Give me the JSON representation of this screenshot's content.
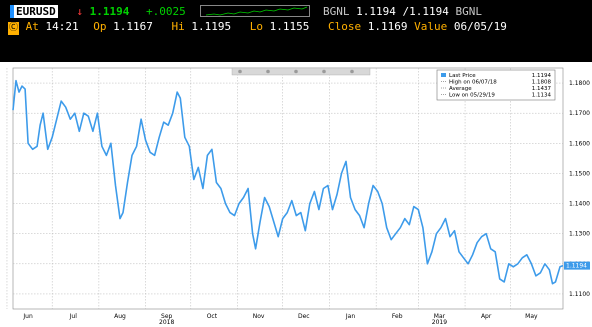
{
  "header": {
    "ticker": "EURUSD",
    "arrow": "↓",
    "last": "1.1194",
    "change": "+.0025",
    "source": "BGNL",
    "bid_ask": "1.1194 /1.1194",
    "source2": "BGNL",
    "command": "Ⓒ",
    "at_label": "At",
    "at_time": "14:21",
    "op_label": "Op",
    "op_value": "1.1167",
    "hi_label": "Hi",
    "hi_value": "1.1195",
    "lo_label": "Lo",
    "lo_value": "1.1155",
    "close_label": "Close",
    "close_value": "1.1169",
    "value_label": "Value",
    "value_date": "06/05/19"
  },
  "colors": {
    "line": "#3d9bea",
    "header_bg": "#000000",
    "plot_bg": "#ffffff",
    "grid": "#b4b4b4",
    "last_tag": "#3d9bea",
    "up_green": "#00d100",
    "down_red": "#ff3b3b",
    "amber": "#ffb000"
  },
  "toolbar_icons": [
    "zoom-icon",
    "pan-icon",
    "edit-icon",
    "news-icon",
    "search-icon"
  ],
  "chart_data": {
    "type": "line",
    "title": "",
    "xlabel": "",
    "ylabel": "",
    "ylim": [
      1.105,
      1.185
    ],
    "grid": true,
    "y_axis_side": "right",
    "yticks": [
      "1.1800",
      "1.1700",
      "1.1600",
      "1.1500",
      "1.1400",
      "1.1300",
      "1.1200",
      "1.1100"
    ],
    "xlim": [
      "2018-06-05",
      "2019-06-05"
    ],
    "x_month_ticks": [
      {
        "label": "Jun",
        "date": "2018-06-15"
      },
      {
        "label": "Jul",
        "date": "2018-07-15"
      },
      {
        "label": "Aug",
        "date": "2018-08-15"
      },
      {
        "label": "Sep",
        "date": "2018-09-15",
        "year": "2018"
      },
      {
        "label": "Oct",
        "date": "2018-10-15"
      },
      {
        "label": "Nov",
        "date": "2018-11-15"
      },
      {
        "label": "Dec",
        "date": "2018-12-15"
      },
      {
        "label": "Jan",
        "date": "2019-01-15"
      },
      {
        "label": "Feb",
        "date": "2019-02-15"
      },
      {
        "label": "Mar",
        "date": "2019-03-15",
        "year": "2019"
      },
      {
        "label": "Apr",
        "date": "2019-04-15"
      },
      {
        "label": "May",
        "date": "2019-05-15"
      }
    ],
    "legend": {
      "position": "top-right",
      "entries": [
        {
          "label": "Last Price",
          "value": "1.1194"
        },
        {
          "label": "High on 06/07/18",
          "value": "1.1808"
        },
        {
          "label": "Average",
          "value": "1.1437"
        },
        {
          "label": "Low on 05/29/19",
          "value": "1.1134"
        }
      ]
    },
    "last_price_tag": "1.1194",
    "series": [
      {
        "name": "Last Price",
        "points": [
          {
            "x": "2018-06-05",
            "y": 1.171
          },
          {
            "x": "2018-06-07",
            "y": 1.1808
          },
          {
            "x": "2018-06-09",
            "y": 1.177
          },
          {
            "x": "2018-06-11",
            "y": 1.179
          },
          {
            "x": "2018-06-13",
            "y": 1.178
          },
          {
            "x": "2018-06-15",
            "y": 1.16
          },
          {
            "x": "2018-06-18",
            "y": 1.158
          },
          {
            "x": "2018-06-21",
            "y": 1.159
          },
          {
            "x": "2018-06-23",
            "y": 1.166
          },
          {
            "x": "2018-06-25",
            "y": 1.17
          },
          {
            "x": "2018-06-28",
            "y": 1.158
          },
          {
            "x": "2018-07-01",
            "y": 1.162
          },
          {
            "x": "2018-07-04",
            "y": 1.168
          },
          {
            "x": "2018-07-07",
            "y": 1.174
          },
          {
            "x": "2018-07-10",
            "y": 1.172
          },
          {
            "x": "2018-07-13",
            "y": 1.168
          },
          {
            "x": "2018-07-16",
            "y": 1.17
          },
          {
            "x": "2018-07-19",
            "y": 1.164
          },
          {
            "x": "2018-07-22",
            "y": 1.17
          },
          {
            "x": "2018-07-25",
            "y": 1.169
          },
          {
            "x": "2018-07-28",
            "y": 1.164
          },
          {
            "x": "2018-07-31",
            "y": 1.17
          },
          {
            "x": "2018-08-03",
            "y": 1.159
          },
          {
            "x": "2018-08-06",
            "y": 1.156
          },
          {
            "x": "2018-08-09",
            "y": 1.16
          },
          {
            "x": "2018-08-12",
            "y": 1.146
          },
          {
            "x": "2018-08-15",
            "y": 1.135
          },
          {
            "x": "2018-08-17",
            "y": 1.137
          },
          {
            "x": "2018-08-20",
            "y": 1.147
          },
          {
            "x": "2018-08-23",
            "y": 1.156
          },
          {
            "x": "2018-08-26",
            "y": 1.159
          },
          {
            "x": "2018-08-29",
            "y": 1.168
          },
          {
            "x": "2018-09-01",
            "y": 1.161
          },
          {
            "x": "2018-09-04",
            "y": 1.157
          },
          {
            "x": "2018-09-07",
            "y": 1.156
          },
          {
            "x": "2018-09-10",
            "y": 1.162
          },
          {
            "x": "2018-09-13",
            "y": 1.167
          },
          {
            "x": "2018-09-16",
            "y": 1.166
          },
          {
            "x": "2018-09-19",
            "y": 1.17
          },
          {
            "x": "2018-09-22",
            "y": 1.177
          },
          {
            "x": "2018-09-24",
            "y": 1.175
          },
          {
            "x": "2018-09-27",
            "y": 1.162
          },
          {
            "x": "2018-09-30",
            "y": 1.159
          },
          {
            "x": "2018-10-03",
            "y": 1.148
          },
          {
            "x": "2018-10-06",
            "y": 1.152
          },
          {
            "x": "2018-10-09",
            "y": 1.145
          },
          {
            "x": "2018-10-12",
            "y": 1.156
          },
          {
            "x": "2018-10-15",
            "y": 1.158
          },
          {
            "x": "2018-10-18",
            "y": 1.147
          },
          {
            "x": "2018-10-21",
            "y": 1.145
          },
          {
            "x": "2018-10-24",
            "y": 1.14
          },
          {
            "x": "2018-10-27",
            "y": 1.137
          },
          {
            "x": "2018-10-30",
            "y": 1.136
          },
          {
            "x": "2018-11-02",
            "y": 1.14
          },
          {
            "x": "2018-11-05",
            "y": 1.142
          },
          {
            "x": "2018-11-08",
            "y": 1.145
          },
          {
            "x": "2018-11-11",
            "y": 1.13
          },
          {
            "x": "2018-11-13",
            "y": 1.125
          },
          {
            "x": "2018-11-16",
            "y": 1.134
          },
          {
            "x": "2018-11-19",
            "y": 1.142
          },
          {
            "x": "2018-11-22",
            "y": 1.139
          },
          {
            "x": "2018-11-25",
            "y": 1.134
          },
          {
            "x": "2018-11-28",
            "y": 1.129
          },
          {
            "x": "2018-12-01",
            "y": 1.135
          },
          {
            "x": "2018-12-04",
            "y": 1.137
          },
          {
            "x": "2018-12-07",
            "y": 1.141
          },
          {
            "x": "2018-12-10",
            "y": 1.136
          },
          {
            "x": "2018-12-13",
            "y": 1.137
          },
          {
            "x": "2018-12-16",
            "y": 1.131
          },
          {
            "x": "2018-12-19",
            "y": 1.14
          },
          {
            "x": "2018-12-22",
            "y": 1.144
          },
          {
            "x": "2018-12-25",
            "y": 1.138
          },
          {
            "x": "2018-12-28",
            "y": 1.145
          },
          {
            "x": "2018-12-31",
            "y": 1.146
          },
          {
            "x": "2019-01-03",
            "y": 1.138
          },
          {
            "x": "2019-01-06",
            "y": 1.143
          },
          {
            "x": "2019-01-09",
            "y": 1.15
          },
          {
            "x": "2019-01-12",
            "y": 1.154
          },
          {
            "x": "2019-01-15",
            "y": 1.142
          },
          {
            "x": "2019-01-18",
            "y": 1.138
          },
          {
            "x": "2019-01-21",
            "y": 1.136
          },
          {
            "x": "2019-01-24",
            "y": 1.132
          },
          {
            "x": "2019-01-27",
            "y": 1.14
          },
          {
            "x": "2019-01-30",
            "y": 1.146
          },
          {
            "x": "2019-02-02",
            "y": 1.144
          },
          {
            "x": "2019-02-05",
            "y": 1.14
          },
          {
            "x": "2019-02-08",
            "y": 1.132
          },
          {
            "x": "2019-02-11",
            "y": 1.128
          },
          {
            "x": "2019-02-14",
            "y": 1.13
          },
          {
            "x": "2019-02-17",
            "y": 1.132
          },
          {
            "x": "2019-02-20",
            "y": 1.135
          },
          {
            "x": "2019-02-23",
            "y": 1.133
          },
          {
            "x": "2019-02-26",
            "y": 1.139
          },
          {
            "x": "2019-03-01",
            "y": 1.138
          },
          {
            "x": "2019-03-04",
            "y": 1.132
          },
          {
            "x": "2019-03-07",
            "y": 1.12
          },
          {
            "x": "2019-03-10",
            "y": 1.124
          },
          {
            "x": "2019-03-13",
            "y": 1.13
          },
          {
            "x": "2019-03-16",
            "y": 1.132
          },
          {
            "x": "2019-03-19",
            "y": 1.135
          },
          {
            "x": "2019-03-22",
            "y": 1.129
          },
          {
            "x": "2019-03-25",
            "y": 1.131
          },
          {
            "x": "2019-03-28",
            "y": 1.124
          },
          {
            "x": "2019-03-31",
            "y": 1.122
          },
          {
            "x": "2019-04-03",
            "y": 1.12
          },
          {
            "x": "2019-04-06",
            "y": 1.123
          },
          {
            "x": "2019-04-09",
            "y": 1.127
          },
          {
            "x": "2019-04-12",
            "y": 1.129
          },
          {
            "x": "2019-04-15",
            "y": 1.13
          },
          {
            "x": "2019-04-18",
            "y": 1.125
          },
          {
            "x": "2019-04-21",
            "y": 1.124
          },
          {
            "x": "2019-04-24",
            "y": 1.115
          },
          {
            "x": "2019-04-27",
            "y": 1.114
          },
          {
            "x": "2019-04-30",
            "y": 1.12
          },
          {
            "x": "2019-05-03",
            "y": 1.119
          },
          {
            "x": "2019-05-06",
            "y": 1.12
          },
          {
            "x": "2019-05-09",
            "y": 1.122
          },
          {
            "x": "2019-05-12",
            "y": 1.123
          },
          {
            "x": "2019-05-15",
            "y": 1.12
          },
          {
            "x": "2019-05-18",
            "y": 1.116
          },
          {
            "x": "2019-05-21",
            "y": 1.117
          },
          {
            "x": "2019-05-24",
            "y": 1.12
          },
          {
            "x": "2019-05-27",
            "y": 1.118
          },
          {
            "x": "2019-05-29",
            "y": 1.1134
          },
          {
            "x": "2019-05-31",
            "y": 1.114
          },
          {
            "x": "2019-06-03",
            "y": 1.119
          },
          {
            "x": "2019-06-05",
            "y": 1.1194
          }
        ]
      }
    ]
  }
}
